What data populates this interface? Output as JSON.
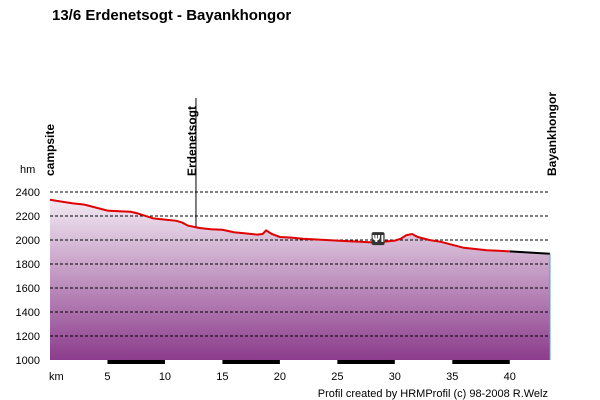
{
  "chart_data": {
    "type": "area",
    "title": "13/6 Erdenetsogt - Bayankhongor",
    "ylabel": "hm",
    "xlabel": "km",
    "xlim": [
      0,
      43.5
    ],
    "ylim": [
      1000,
      2400
    ],
    "x_ticks": [
      5,
      10,
      15,
      20,
      25,
      30,
      35,
      40
    ],
    "y_ticks": [
      1000,
      1200,
      1400,
      1600,
      1800,
      2000,
      2200,
      2400
    ],
    "grid": "dashed horizontal",
    "series": [
      {
        "x": [
          0,
          1,
          2,
          3,
          4,
          5,
          6,
          7,
          7.5,
          8,
          9,
          10,
          11,
          11.5,
          12,
          13,
          14,
          15,
          16,
          17,
          18,
          18.5,
          18.8,
          19.3,
          20,
          21,
          22,
          23,
          24,
          25,
          26,
          27,
          28,
          29,
          30,
          30.5,
          31,
          31.5,
          32,
          33,
          34,
          35,
          36,
          37,
          38,
          39,
          40,
          41,
          42,
          43.5
        ],
        "y": [
          2335,
          2320,
          2305,
          2295,
          2270,
          2245,
          2240,
          2235,
          2225,
          2210,
          2180,
          2170,
          2160,
          2145,
          2120,
          2100,
          2090,
          2085,
          2065,
          2055,
          2045,
          2050,
          2080,
          2050,
          2025,
          2020,
          2010,
          2005,
          2000,
          1995,
          1990,
          1985,
          1980,
          1985,
          1995,
          2010,
          2040,
          2050,
          2025,
          2000,
          1985,
          1960,
          1935,
          1925,
          1915,
          1910,
          1905,
          1900,
          1895,
          1885
        ]
      }
    ],
    "waypoints": [
      {
        "label": "campsite",
        "km": 0
      },
      {
        "label": "Erdenetsogt",
        "km": 12.7
      },
      {
        "label": "Bayankhongor",
        "km": 43.5
      }
    ],
    "restaurant_icon_km": 28.5,
    "credit": "Profil created by HRMProfil (c) 98-2008 R.Welz",
    "colors": {
      "line": "#e00000",
      "fill_top": "#f2eaf2",
      "fill_bottom": "#8c3c8c",
      "grid": "#000000",
      "bar": "#000000"
    }
  }
}
